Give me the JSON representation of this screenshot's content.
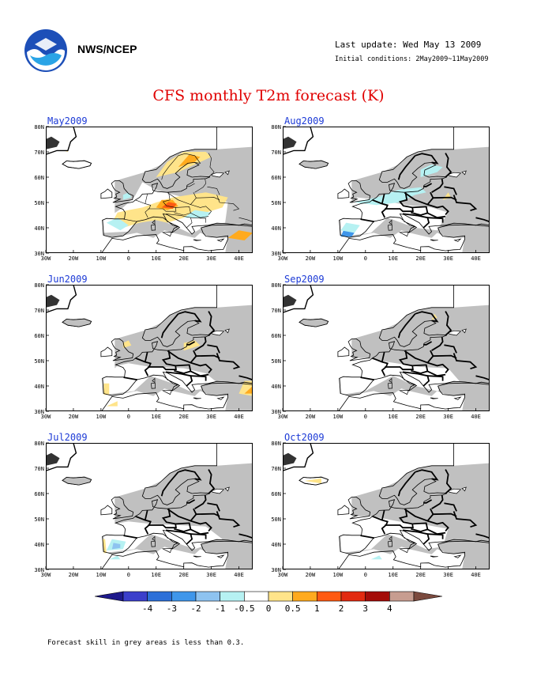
{
  "header": {
    "agency": "NWS/NCEP",
    "last_update": "Last update: Wed May 13 2009",
    "initial_conditions": "Initial conditions: 2May2009~11May2009",
    "title": "CFS monthly T2m forecast (K)"
  },
  "axes": {
    "lat_labels": [
      "80N",
      "70N",
      "60N",
      "50N",
      "40N",
      "30N"
    ],
    "lon_labels": [
      "30W",
      "20W",
      "10W",
      "0",
      "10E",
      "20E",
      "30E",
      "40E"
    ]
  },
  "panels": [
    {
      "label": "May2009"
    },
    {
      "label": "Aug2009"
    },
    {
      "label": "Jun2009"
    },
    {
      "label": "Sep2009"
    },
    {
      "label": "Jul2009"
    },
    {
      "label": "Oct2009"
    }
  ],
  "colorbar": {
    "colors": [
      "#1e1a8c",
      "#3b3fcb",
      "#2c6fd8",
      "#3f96ea",
      "#8ec3f0",
      "#b6f1f2",
      "#ffffff",
      "#ffe48a",
      "#ffaa1e",
      "#ff5a12",
      "#e22a10",
      "#a40c08",
      "#c79d90",
      "#7b4a3e"
    ],
    "tick_labels": [
      "-4",
      "-3",
      "-2",
      "-1",
      "-0.5",
      "0",
      "0.5",
      "1",
      "2",
      "3",
      "4"
    ]
  },
  "note": "Forecast skill in grey areas is less than 0.3.",
  "colors": {
    "grey_low_skill": "#c0c0c0",
    "title_red": "#e00000",
    "label_blue": "#1c3ad6"
  }
}
